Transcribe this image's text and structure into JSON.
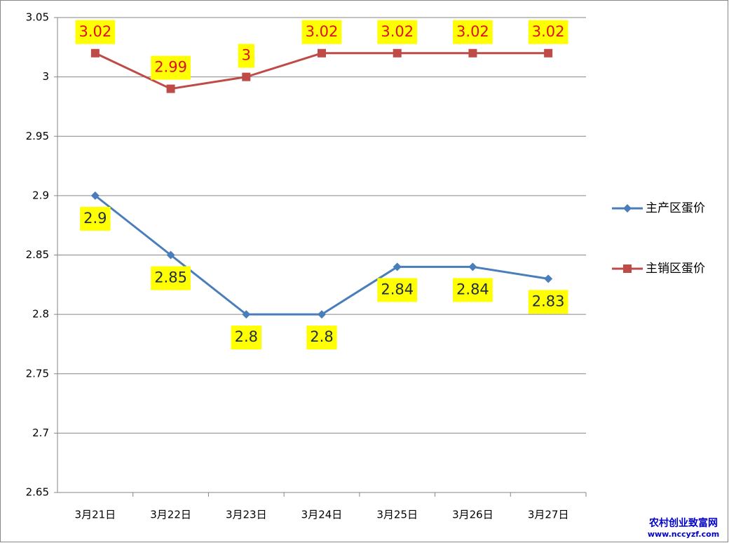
{
  "chart_data": {
    "type": "line",
    "categories": [
      "3月21日",
      "3月22日",
      "3月23日",
      "3月24日",
      "3月25日",
      "3月26日",
      "3月27日"
    ],
    "series": [
      {
        "name": "主产区蛋价",
        "color": "#4a7ebb",
        "marker": "diamond",
        "values": [
          2.9,
          2.85,
          2.8,
          2.8,
          2.84,
          2.84,
          2.83
        ]
      },
      {
        "name": "主销区蛋价",
        "color": "#be4b48",
        "marker": "square",
        "values": [
          3.02,
          2.99,
          3,
          3.02,
          3.02,
          3.02,
          3.02
        ]
      }
    ],
    "ylim": [
      2.65,
      3.05
    ],
    "yticks": [
      2.65,
      2.7,
      2.75,
      2.8,
      2.85,
      2.9,
      2.95,
      3,
      3.05
    ],
    "grid": true,
    "legend": "right"
  },
  "watermark": {
    "title": "农村创业致富网",
    "url": "www.nccyzf.com"
  }
}
